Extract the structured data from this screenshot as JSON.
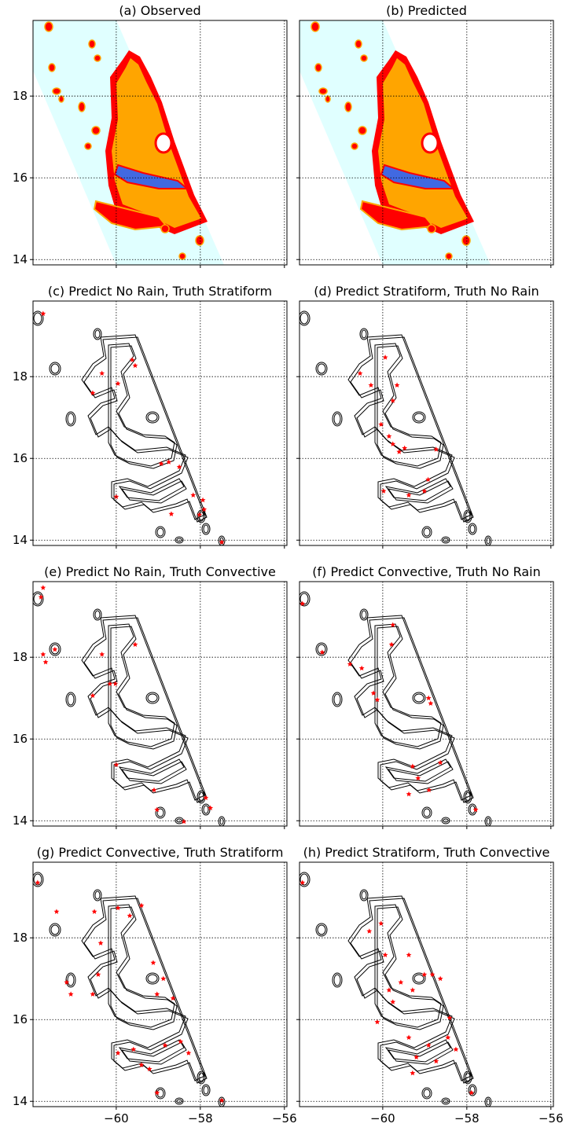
{
  "chart_data": [
    {
      "type": "map",
      "title": "(a) Observed",
      "xlim": [
        -61.98,
        -55.94
      ],
      "ylim": [
        13.87,
        19.85
      ],
      "xticks": [
        {
          "value": -60,
          "label": "−60"
        },
        {
          "value": -58,
          "label": "−58"
        },
        {
          "value": -56,
          "label": "−56"
        }
      ],
      "yticks": [
        14,
        16,
        18
      ],
      "grid": true
    },
    {
      "type": "map",
      "title": "(b) Predicted",
      "xlim": [
        -61.98,
        -55.94
      ],
      "ylim": [
        13.87,
        19.85
      ],
      "xticks": [
        {
          "value": -60,
          "label": "−60"
        },
        {
          "value": -58,
          "label": "−58"
        },
        {
          "value": -56,
          "label": "−56"
        }
      ],
      "yticks": [
        14,
        16,
        18
      ],
      "grid": true
    },
    {
      "type": "scatter",
      "title": "(c) Predict No Rain, Truth Stratiform",
      "color": "#ff0000",
      "xlim": [
        -61.98,
        -55.94
      ],
      "ylim": [
        13.87,
        19.85
      ],
      "xticks": [
        {
          "value": -60,
          "label": "−60"
        },
        {
          "value": -58,
          "label": "−58"
        },
        {
          "value": -56,
          "label": "−56"
        }
      ],
      "yticks": [
        14,
        16,
        18
      ],
      "grid": true,
      "x": [
        -61.74,
        -59.62,
        -59.55,
        -59.96,
        -60.56,
        -60.34,
        -58.93,
        -58.75,
        -58.5,
        -58.17,
        -57.94,
        -57.91,
        -58.02,
        -57.49,
        -60.0,
        -58.69
      ],
      "y": [
        19.54,
        18.41,
        18.27,
        17.83,
        17.6,
        18.08,
        15.87,
        15.91,
        15.79,
        15.1,
        14.98,
        14.75,
        14.62,
        13.95,
        15.06,
        14.64
      ]
    },
    {
      "type": "scatter",
      "title": "(d) Predict Stratiform, Truth No Rain",
      "color": "#ff0000",
      "xlim": [
        -61.98,
        -55.94
      ],
      "ylim": [
        13.87,
        19.85
      ],
      "xticks": [
        {
          "value": -60,
          "label": "−60"
        },
        {
          "value": -58,
          "label": "−58"
        },
        {
          "value": -56,
          "label": "−56"
        }
      ],
      "yticks": [
        14,
        16,
        18
      ],
      "grid": true,
      "x": [
        -59.94,
        -59.66,
        -59.76,
        -60.04,
        -59.85,
        -59.76,
        -59.61,
        -59.48,
        -58.73,
        -58.92,
        -59.01,
        -59.38,
        -59.98,
        -60.28,
        -60.54
      ],
      "y": [
        18.47,
        17.79,
        17.41,
        16.83,
        16.54,
        16.35,
        16.16,
        16.25,
        16.22,
        15.48,
        15.2,
        15.1,
        15.2,
        17.79,
        18.08
      ]
    },
    {
      "type": "scatter",
      "title": "(e) Predict No Rain, Truth Convective",
      "color": "#ff0000",
      "xlim": [
        -61.98,
        -55.94
      ],
      "ylim": [
        13.87,
        19.85
      ],
      "xticks": [
        {
          "value": -60,
          "label": "−60"
        },
        {
          "value": -58,
          "label": "−58"
        },
        {
          "value": -56,
          "label": "−56"
        }
      ],
      "yticks": [
        14,
        16,
        18
      ],
      "grid": true,
      "x": [
        -61.74,
        -61.79,
        -61.74,
        -61.68,
        -61.46,
        -60.34,
        -60.56,
        -60.15,
        -60.02,
        -59.55,
        -60.0,
        -59.1,
        -59.03,
        -58.39,
        -57.87,
        -57.76
      ],
      "y": [
        19.7,
        19.47,
        18.07,
        17.88,
        18.19,
        18.07,
        17.06,
        17.35,
        17.35,
        18.31,
        15.37,
        14.75,
        14.27,
        13.98,
        14.56,
        14.31
      ]
    },
    {
      "type": "scatter",
      "title": "(f) Predict Convective, Truth No Rain",
      "color": "#ff0000",
      "xlim": [
        -61.98,
        -55.94
      ],
      "ylim": [
        13.87,
        19.85
      ],
      "xticks": [
        {
          "value": -60,
          "label": "−60"
        },
        {
          "value": -58,
          "label": "−58"
        },
        {
          "value": -56,
          "label": "−56"
        }
      ],
      "yticks": [
        14,
        16,
        18
      ],
      "grid": true,
      "x": [
        -61.91,
        -61.44,
        -60.78,
        -60.5,
        -60.22,
        -60.13,
        -59.79,
        -59.76,
        -58.91,
        -58.86,
        -59.29,
        -59.16,
        -59.38,
        -58.9,
        -58.63,
        -57.79
      ],
      "y": [
        19.31,
        18.12,
        17.83,
        17.73,
        17.12,
        16.96,
        18.31,
        18.79,
        17.0,
        16.87,
        15.33,
        15.04,
        14.65,
        14.75,
        15.42,
        14.27
      ]
    },
    {
      "type": "scatter",
      "title": "(g) Predict Convective, Truth Stratiform",
      "color": "#ff0000",
      "xlim": [
        -61.98,
        -55.94
      ],
      "ylim": [
        13.87,
        19.85
      ],
      "xticks": [
        {
          "value": -60,
          "label": "−60"
        },
        {
          "value": -58,
          "label": "−58"
        },
        {
          "value": -56,
          "label": "−56"
        }
      ],
      "yticks": [
        14,
        16,
        18
      ],
      "grid": true,
      "x": [
        -61.87,
        -61.42,
        -61.18,
        -61.08,
        -60.52,
        -59.96,
        -59.68,
        -59.4,
        -60.37,
        -60.56,
        -59.12,
        -58.88,
        -59.03,
        -58.65,
        -59.96,
        -59.59,
        -59.4,
        -59.21,
        -58.84,
        -58.47,
        -58.28,
        -57.49,
        -59.03,
        -60.43
      ],
      "y": [
        19.35,
        18.64,
        16.91,
        16.62,
        18.64,
        18.73,
        18.54,
        18.79,
        17.87,
        16.62,
        17.39,
        17.0,
        16.62,
        16.52,
        15.18,
        15.27,
        14.89,
        14.79,
        15.37,
        15.46,
        15.18,
        14.02,
        14.21,
        17.1
      ]
    },
    {
      "type": "scatter",
      "title": "(h) Predict Stratiform, Truth Convective",
      "color": "#ff0000",
      "xlim": [
        -61.98,
        -55.94
      ],
      "ylim": [
        13.87,
        19.85
      ],
      "xticks": [
        {
          "value": -60,
          "label": "−60"
        },
        {
          "value": -58,
          "label": "−58"
        },
        {
          "value": -56,
          "label": "−56"
        }
      ],
      "yticks": [
        14,
        16,
        18
      ],
      "grid": true,
      "x": [
        -61.91,
        -60.32,
        -60.04,
        -59.94,
        -59.85,
        -59.57,
        -59.38,
        -59.29,
        -59.76,
        -59.01,
        -58.82,
        -58.63,
        -58.41,
        -58.45,
        -58.91,
        -59.2,
        -59.38,
        -58.73,
        -58.26,
        -57.89,
        -60.13,
        -59.29
      ],
      "y": [
        19.35,
        18.16,
        18.35,
        17.58,
        16.72,
        16.91,
        17.58,
        16.72,
        16.43,
        17.1,
        17.1,
        17.0,
        16.04,
        15.56,
        15.37,
        15.08,
        15.56,
        14.98,
        15.27,
        14.21,
        15.94,
        14.69
      ]
    }
  ]
}
